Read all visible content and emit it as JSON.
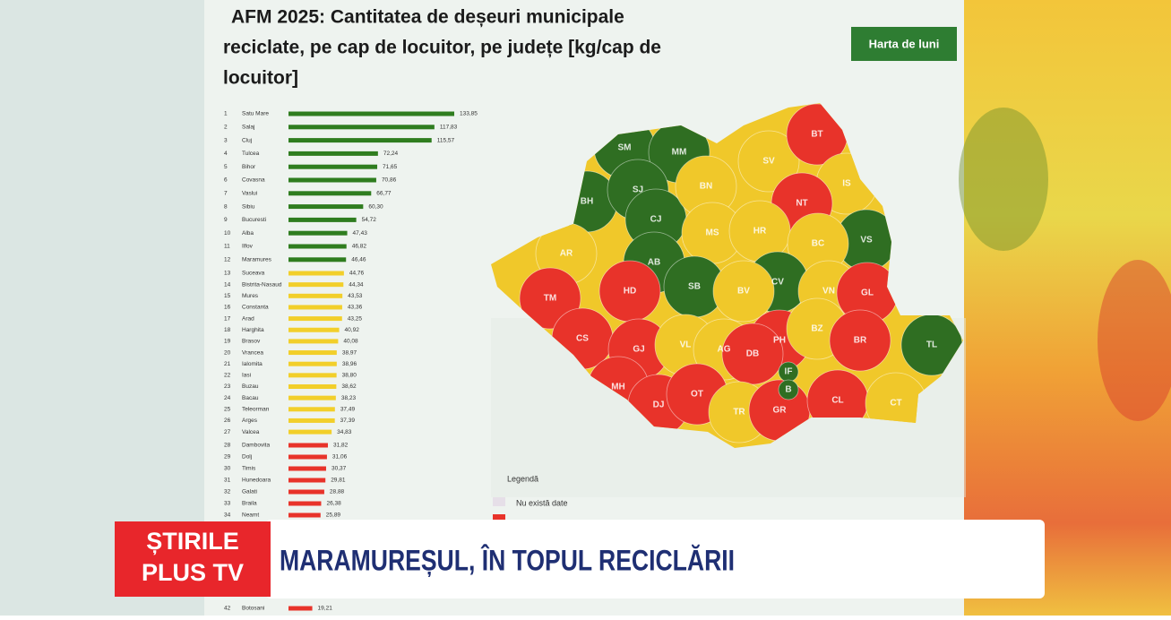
{
  "chart_data": {
    "type": "bar",
    "title_lines": [
      "AFM 2025: Cantitatea de deșeuri municipale",
      "reciclate, pe cap de locuitor, pe județe [kg/cap de",
      "locuitor]"
    ],
    "ranks": [
      1,
      2,
      3,
      4,
      5,
      6,
      7,
      8,
      9,
      10,
      11,
      12,
      13,
      14,
      15,
      16,
      17,
      18,
      19,
      20,
      21,
      22,
      23,
      24,
      25,
      26,
      27,
      28,
      29,
      30,
      31,
      32,
      33,
      34,
      42
    ],
    "categories": [
      "Satu Mare",
      "Salaj",
      "Cluj",
      "Tulcea",
      "Bihor",
      "Covasna",
      "Vaslui",
      "Sibiu",
      "Bucuresti",
      "Alba",
      "Ilfov",
      "Maramures",
      "Suceava",
      "Bistrita-Nasaud",
      "Mures",
      "Constanta",
      "Arad",
      "Harghita",
      "Brasov",
      "Vrancea",
      "Ialomita",
      "Iasi",
      "Buzau",
      "Bacau",
      "Teleorman",
      "Arges",
      "Valcea",
      "Dambovita",
      "Dolj",
      "Timis",
      "Hunedoara",
      "Galati",
      "Braila",
      "Neamt",
      "Botosani"
    ],
    "values": [
      133.85,
      117.83,
      115.57,
      72.24,
      71.65,
      70.86,
      66.77,
      60.3,
      54.72,
      47.43,
      46.82,
      46.46,
      44.76,
      44.34,
      43.53,
      43.36,
      43.25,
      40.92,
      40.08,
      38.97,
      38.96,
      38.8,
      38.62,
      38.23,
      37.49,
      37.39,
      34.83,
      31.82,
      31.06,
      30.37,
      29.81,
      28.88,
      26.38,
      25.89,
      19.21
    ],
    "value_labels": [
      "133,85",
      "117,83",
      "115,57",
      "72,24",
      "71,65",
      "70,86",
      "66,77",
      "60,30",
      "54,72",
      "47,43",
      "46,82",
      "46,46",
      "44,76",
      "44,34",
      "43,53",
      "43,36",
      "43,25",
      "40,92",
      "40,08",
      "38,97",
      "38,96",
      "38,80",
      "38,62",
      "38,23",
      "37,49",
      "37,39",
      "34,83",
      "31,82",
      "31,06",
      "30,37",
      "29,81",
      "28,88",
      "26,38",
      "25,89",
      "19,21"
    ],
    "colors": [
      "#2f7d1f",
      "#2f7d1f",
      "#2f7d1f",
      "#2f7d1f",
      "#2f7d1f",
      "#2f7d1f",
      "#2f7d1f",
      "#2f7d1f",
      "#2f7d1f",
      "#2f7d1f",
      "#2f7d1f",
      "#2f7d1f",
      "#f2cf2a",
      "#f2cf2a",
      "#f2cf2a",
      "#f2cf2a",
      "#f2cf2a",
      "#f2cf2a",
      "#f2cf2a",
      "#f2cf2a",
      "#f2cf2a",
      "#f2cf2a",
      "#f2cf2a",
      "#f2cf2a",
      "#f2cf2a",
      "#f2cf2a",
      "#f2cf2a",
      "#e8332a",
      "#e8332a",
      "#e8332a",
      "#e8332a",
      "#e8332a",
      "#e8332a",
      "#e8332a",
      "#e8332a"
    ]
  },
  "map": {
    "badge": "Harta de luni",
    "counties": [
      {
        "label": "SM",
        "color": "#2f6e22"
      },
      {
        "label": "MM",
        "color": "#2f6e22"
      },
      {
        "label": "BH",
        "color": "#2f6e22"
      },
      {
        "label": "SJ",
        "color": "#2f6e22"
      },
      {
        "label": "CJ",
        "color": "#2f6e22"
      },
      {
        "label": "BN",
        "color": "#f0c82a"
      },
      {
        "label": "SV",
        "color": "#f0c82a"
      },
      {
        "label": "BT",
        "color": "#e8332a"
      },
      {
        "label": "IS",
        "color": "#f0c82a"
      },
      {
        "label": "NT",
        "color": "#e8332a"
      },
      {
        "label": "VS",
        "color": "#2f6e22"
      },
      {
        "label": "MS",
        "color": "#f0c82a"
      },
      {
        "label": "HR",
        "color": "#f0c82a"
      },
      {
        "label": "BC",
        "color": "#f0c82a"
      },
      {
        "label": "AR",
        "color": "#f0c82a"
      },
      {
        "label": "AB",
        "color": "#2f6e22"
      },
      {
        "label": "SB",
        "color": "#2f6e22"
      },
      {
        "label": "CV",
        "color": "#2f6e22"
      },
      {
        "label": "BV",
        "color": "#f0c82a"
      },
      {
        "label": "VN",
        "color": "#f0c82a"
      },
      {
        "label": "GL",
        "color": "#e8332a"
      },
      {
        "label": "TM",
        "color": "#e8332a"
      },
      {
        "label": "HD",
        "color": "#e8332a"
      },
      {
        "label": "CS",
        "color": "#e8332a"
      },
      {
        "label": "GJ",
        "color": "#e8332a"
      },
      {
        "label": "VL",
        "color": "#f0c82a"
      },
      {
        "label": "AG",
        "color": "#f0c82a"
      },
      {
        "label": "PH",
        "color": "#e8332a"
      },
      {
        "label": "BZ",
        "color": "#f0c82a"
      },
      {
        "label": "BR",
        "color": "#e8332a"
      },
      {
        "label": "TL",
        "color": "#2f6e22"
      },
      {
        "label": "DB",
        "color": "#e8332a"
      },
      {
        "label": "MH",
        "color": "#e8332a"
      },
      {
        "label": "DJ",
        "color": "#e8332a"
      },
      {
        "label": "OT",
        "color": "#e8332a"
      },
      {
        "label": "TR",
        "color": "#f0c82a"
      },
      {
        "label": "GR",
        "color": "#e8332a"
      },
      {
        "label": "CL",
        "color": "#e8332a"
      },
      {
        "label": "CT",
        "color": "#f0c82a"
      },
      {
        "label": "IF",
        "color": "#2f6e22"
      },
      {
        "label": "B",
        "color": "#2f6e22"
      }
    ],
    "legend_title": "Legendă",
    "legend_items": [
      "Nu există date"
    ]
  },
  "banner": {
    "logo_lines": [
      "ȘTIRILE",
      "PLUS TV"
    ],
    "headline": "MARAMUREȘUL, ÎN TOPUL RECICLĂRII"
  }
}
